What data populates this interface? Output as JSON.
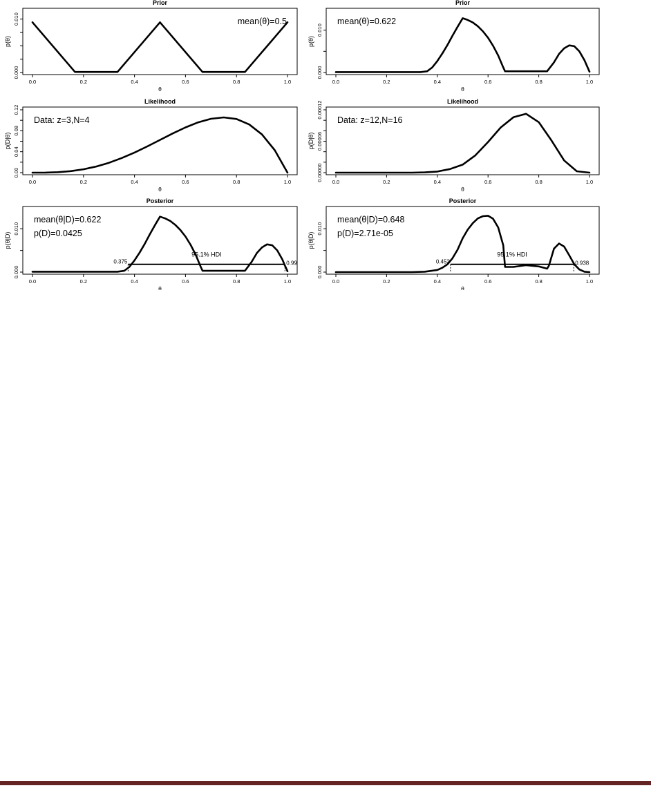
{
  "colors": {
    "curve": "#000000",
    "frame": "#000000",
    "footer_rule": "#632423",
    "background": "#ffffff"
  },
  "chart_data": [
    {
      "id": "prior-left",
      "type": "line",
      "title": "Prior",
      "xlabel": "θ",
      "ylabel": "p(θ)",
      "xlim": [
        0,
        1
      ],
      "ylim": [
        0,
        0.0115
      ],
      "xticks": [
        0.0,
        0.2,
        0.4,
        0.6,
        0.8,
        1.0
      ],
      "xtick_labels": [
        "0.0",
        "0.2",
        "0.4",
        "0.6",
        "0.8",
        "1.0"
      ],
      "yticks": [
        0,
        0.0025,
        0.005,
        0.0075,
        0.01
      ],
      "ytick_labels": [
        "0.000",
        "",
        "",
        "",
        "0.010"
      ],
      "grid": false,
      "annotations": [
        "mean(θ)=0.5"
      ],
      "annotation_position": "top-right",
      "series": [
        {
          "x": [
            0,
            0.1667,
            0.3333,
            0.5,
            0.6667,
            0.8333,
            1.0
          ],
          "y": [
            0.0094,
            0.0001,
            0.0001,
            0.0094,
            0.0001,
            0.0001,
            0.0094
          ]
        }
      ]
    },
    {
      "id": "prior-right",
      "type": "line",
      "title": "Prior",
      "xlabel": "θ",
      "ylabel": "p(θ)",
      "xlim": [
        0,
        1
      ],
      "ylim": [
        0,
        0.0145
      ],
      "xticks": [
        0.0,
        0.2,
        0.4,
        0.6,
        0.8,
        1.0
      ],
      "xtick_labels": [
        "0.0",
        "0.2",
        "0.4",
        "0.6",
        "0.8",
        "1.0"
      ],
      "yticks": [
        0,
        0.005,
        0.01
      ],
      "ytick_labels": [
        "0.000",
        "",
        "0.010"
      ],
      "grid": false,
      "annotations": [
        "mean(θ)=0.622"
      ],
      "annotation_position": "top-left",
      "series": [
        {
          "x": [
            0,
            0.1,
            0.2,
            0.3,
            0.333,
            0.36,
            0.38,
            0.4,
            0.42,
            0.44,
            0.46,
            0.48,
            0.5,
            0.52,
            0.54,
            0.56,
            0.58,
            0.6,
            0.62,
            0.64,
            0.66,
            0.667,
            0.7,
            0.75,
            0.8,
            0.833,
            0.86,
            0.88,
            0.9,
            0.92,
            0.94,
            0.96,
            0.98,
            1.0
          ],
          "y": [
            0.0001,
            0.0001,
            0.0001,
            0.0001,
            0.0001,
            0.0003,
            0.0012,
            0.0027,
            0.0045,
            0.0065,
            0.0087,
            0.0108,
            0.0128,
            0.0124,
            0.0118,
            0.0109,
            0.0097,
            0.0082,
            0.0063,
            0.004,
            0.0012,
            0.0003,
            0.0003,
            0.0003,
            0.0003,
            0.0003,
            0.0024,
            0.0044,
            0.0057,
            0.0064,
            0.0062,
            0.005,
            0.0029,
            0.0002
          ]
        }
      ]
    },
    {
      "id": "likelihood-left",
      "type": "line",
      "title": "Likelihood",
      "xlabel": "θ",
      "ylabel": "p(D|θ)",
      "xlim": [
        0,
        1
      ],
      "ylim": [
        0,
        0.12
      ],
      "xticks": [
        0.0,
        0.2,
        0.4,
        0.6,
        0.8,
        1.0
      ],
      "xtick_labels": [
        "0.0",
        "0.2",
        "0.4",
        "0.6",
        "0.8",
        "1.0"
      ],
      "yticks": [
        0,
        0.02,
        0.04,
        0.06,
        0.08,
        0.1,
        0.12
      ],
      "ytick_labels": [
        "0.00",
        "",
        "0.04",
        "",
        "0.08",
        "",
        "0.12"
      ],
      "grid": false,
      "annotations": [
        "Data: z=3,N=4"
      ],
      "annotation_position": "top-left",
      "series": [
        {
          "x": [
            0,
            0.05,
            0.1,
            0.15,
            0.2,
            0.25,
            0.3,
            0.35,
            0.4,
            0.45,
            0.5,
            0.55,
            0.6,
            0.65,
            0.7,
            0.75,
            0.8,
            0.85,
            0.9,
            0.95,
            1.0
          ],
          "y": [
            0,
            0.0001,
            0.0009,
            0.0029,
            0.0064,
            0.0117,
            0.0189,
            0.0279,
            0.0384,
            0.0501,
            0.0625,
            0.0749,
            0.0864,
            0.0961,
            0.1029,
            0.1055,
            0.1024,
            0.0921,
            0.0729,
            0.0429,
            0
          ]
        }
      ]
    },
    {
      "id": "likelihood-right",
      "type": "line",
      "title": "Likelihood",
      "xlabel": "θ",
      "ylabel": "p(D|θ)",
      "xlim": [
        0,
        1
      ],
      "ylim": [
        0,
        0.00012
      ],
      "xticks": [
        0.0,
        0.2,
        0.4,
        0.6,
        0.8,
        1.0
      ],
      "xtick_labels": [
        "0.0",
        "0.2",
        "0.4",
        "0.6",
        "0.8",
        "1.0"
      ],
      "yticks": [
        0,
        2e-05,
        4e-05,
        6e-05,
        8e-05,
        0.0001,
        0.00012
      ],
      "ytick_labels": [
        "0.00000",
        "",
        "",
        "0.00006",
        "",
        "",
        "0.00012"
      ],
      "grid": false,
      "annotations": [
        "Data: z=12,N=16"
      ],
      "annotation_position": "top-left",
      "series": [
        {
          "x": [
            0,
            0.3,
            0.35,
            0.4,
            0.45,
            0.5,
            0.55,
            0.6,
            0.65,
            0.7,
            0.75,
            0.8,
            0.85,
            0.9,
            0.95,
            1.0
          ],
          "y": [
            0,
            0,
            5e-07,
            2.1e-06,
            6.9e-06,
            1.53e-05,
            3.31e-05,
            5.86e-05,
            8.63e-05,
            0.0001057,
            0.0001123,
            9.64e-05,
            6.15e-05,
            2.33e-05,
            2.6e-06,
            0
          ]
        }
      ]
    },
    {
      "id": "posterior-left",
      "type": "line",
      "title": "Posterior",
      "xlabel": "θ",
      "ylabel": "p(θ|D)",
      "xlim": [
        0,
        1
      ],
      "ylim": [
        0,
        0.0145
      ],
      "xticks": [
        0.0,
        0.2,
        0.4,
        0.6,
        0.8,
        1.0
      ],
      "xtick_labels": [
        "0.0",
        "0.2",
        "0.4",
        "0.6",
        "0.8",
        "1.0"
      ],
      "yticks": [
        0,
        0.005,
        0.01
      ],
      "ytick_labels": [
        "0.000",
        "",
        "0.010"
      ],
      "grid": false,
      "annotations": [
        "mean(θ|D)=0.622",
        "p(D)=0.0425"
      ],
      "annotation_position": "top-left",
      "hdi": {
        "label": "95.1% HDI",
        "low": 0.375,
        "high": 0.99,
        "low_label": "0.375",
        "high_label": "0.99",
        "height": 0.0018
      },
      "series": [
        {
          "x": [
            0,
            0.1,
            0.2,
            0.3,
            0.333,
            0.36,
            0.38,
            0.4,
            0.42,
            0.44,
            0.46,
            0.48,
            0.5,
            0.52,
            0.54,
            0.56,
            0.58,
            0.6,
            0.62,
            0.64,
            0.66,
            0.667,
            0.7,
            0.75,
            0.8,
            0.833,
            0.86,
            0.88,
            0.9,
            0.92,
            0.94,
            0.96,
            0.98,
            0.99,
            1.0
          ],
          "y": [
            0.0001,
            0.0001,
            0.0001,
            0.0001,
            0.0001,
            0.0003,
            0.0012,
            0.0027,
            0.0045,
            0.0065,
            0.0087,
            0.0108,
            0.0128,
            0.0124,
            0.0118,
            0.0109,
            0.0097,
            0.0082,
            0.0063,
            0.004,
            0.0012,
            0.0003,
            0.0003,
            0.0003,
            0.0003,
            0.0003,
            0.0024,
            0.0044,
            0.0057,
            0.0064,
            0.0062,
            0.005,
            0.0029,
            0.0015,
            0.0002
          ]
        }
      ]
    },
    {
      "id": "posterior-right",
      "type": "line",
      "title": "Posterior",
      "xlabel": "θ",
      "ylabel": "p(θ|D)",
      "xlim": [
        0,
        1
      ],
      "ylim": [
        0,
        0.0145
      ],
      "xticks": [
        0.0,
        0.2,
        0.4,
        0.6,
        0.8,
        1.0
      ],
      "xtick_labels": [
        "0.0",
        "0.2",
        "0.4",
        "0.6",
        "0.8",
        "1.0"
      ],
      "yticks": [
        0,
        0.005,
        0.01
      ],
      "ytick_labels": [
        "0.000",
        "",
        "0.010"
      ],
      "grid": false,
      "annotations": [
        "mean(θ|D)=0.648",
        "p(D)=2.71e-05"
      ],
      "annotation_position": "top-left",
      "hdi": {
        "label": "95.1% HDI",
        "low": 0.452,
        "high": 0.938,
        "low_label": "0.452",
        "high_label": "0.938",
        "height": 0.0018
      },
      "series": [
        {
          "x": [
            0,
            0.3,
            0.35,
            0.4,
            0.42,
            0.44,
            0.46,
            0.48,
            0.5,
            0.52,
            0.54,
            0.56,
            0.58,
            0.6,
            0.62,
            0.64,
            0.66,
            0.667,
            0.7,
            0.75,
            0.8,
            0.833,
            0.84,
            0.86,
            0.88,
            0.9,
            0.92,
            0.94,
            0.96,
            0.98,
            1.0
          ],
          "y": [
            0,
            0,
            0.0001,
            0.0005,
            0.001,
            0.0018,
            0.0032,
            0.0052,
            0.0078,
            0.0098,
            0.0113,
            0.0124,
            0.0129,
            0.013,
            0.0123,
            0.0103,
            0.0062,
            0.0012,
            0.0012,
            0.0016,
            0.0013,
            0.0008,
            0.0015,
            0.0054,
            0.0066,
            0.0059,
            0.0039,
            0.0018,
            0.0006,
            0.0001,
            0
          ]
        }
      ]
    }
  ]
}
